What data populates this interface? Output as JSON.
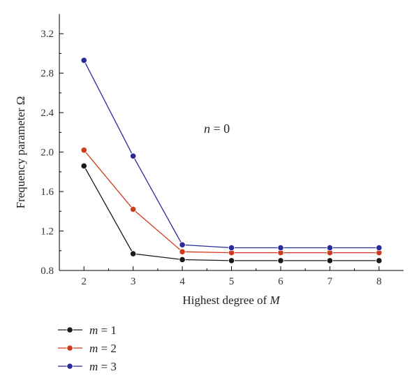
{
  "chart_data": {
    "type": "line",
    "title": "",
    "xlabel_prefix": "Highest degree of ",
    "xlabel_var": "M",
    "ylabel": "Frequency parameter Ω",
    "x": [
      2,
      3,
      4,
      5,
      6,
      7,
      8
    ],
    "xlim": [
      1.5,
      8.5
    ],
    "ylim": [
      0.8,
      3.4
    ],
    "y_ticks": [
      0.8,
      1.2,
      1.6,
      2.0,
      2.4,
      2.8,
      3.2
    ],
    "y_tick_labels": [
      "0.8",
      "1.2",
      "1.6",
      "2.0",
      "2.4",
      "2.8",
      "3.2"
    ],
    "x_tick_labels": [
      "2",
      "3",
      "4",
      "5",
      "6",
      "7",
      "8"
    ],
    "grid": false,
    "legend_position": "below",
    "annotation": {
      "var": "n",
      "rest": " = 0"
    },
    "series": [
      {
        "var": "m",
        "rest": " = 1",
        "color": "#1a1a1a",
        "values": [
          1.86,
          0.97,
          0.91,
          0.9,
          0.9,
          0.9,
          0.9
        ]
      },
      {
        "var": "m",
        "rest": " = 2",
        "color": "#d03a1c",
        "values": [
          2.02,
          1.42,
          0.99,
          0.98,
          0.98,
          0.98,
          0.98
        ]
      },
      {
        "var": "m",
        "rest": " = 3",
        "color": "#2a2a9a",
        "values": [
          2.93,
          1.96,
          1.06,
          1.03,
          1.03,
          1.03,
          1.03
        ]
      }
    ]
  }
}
